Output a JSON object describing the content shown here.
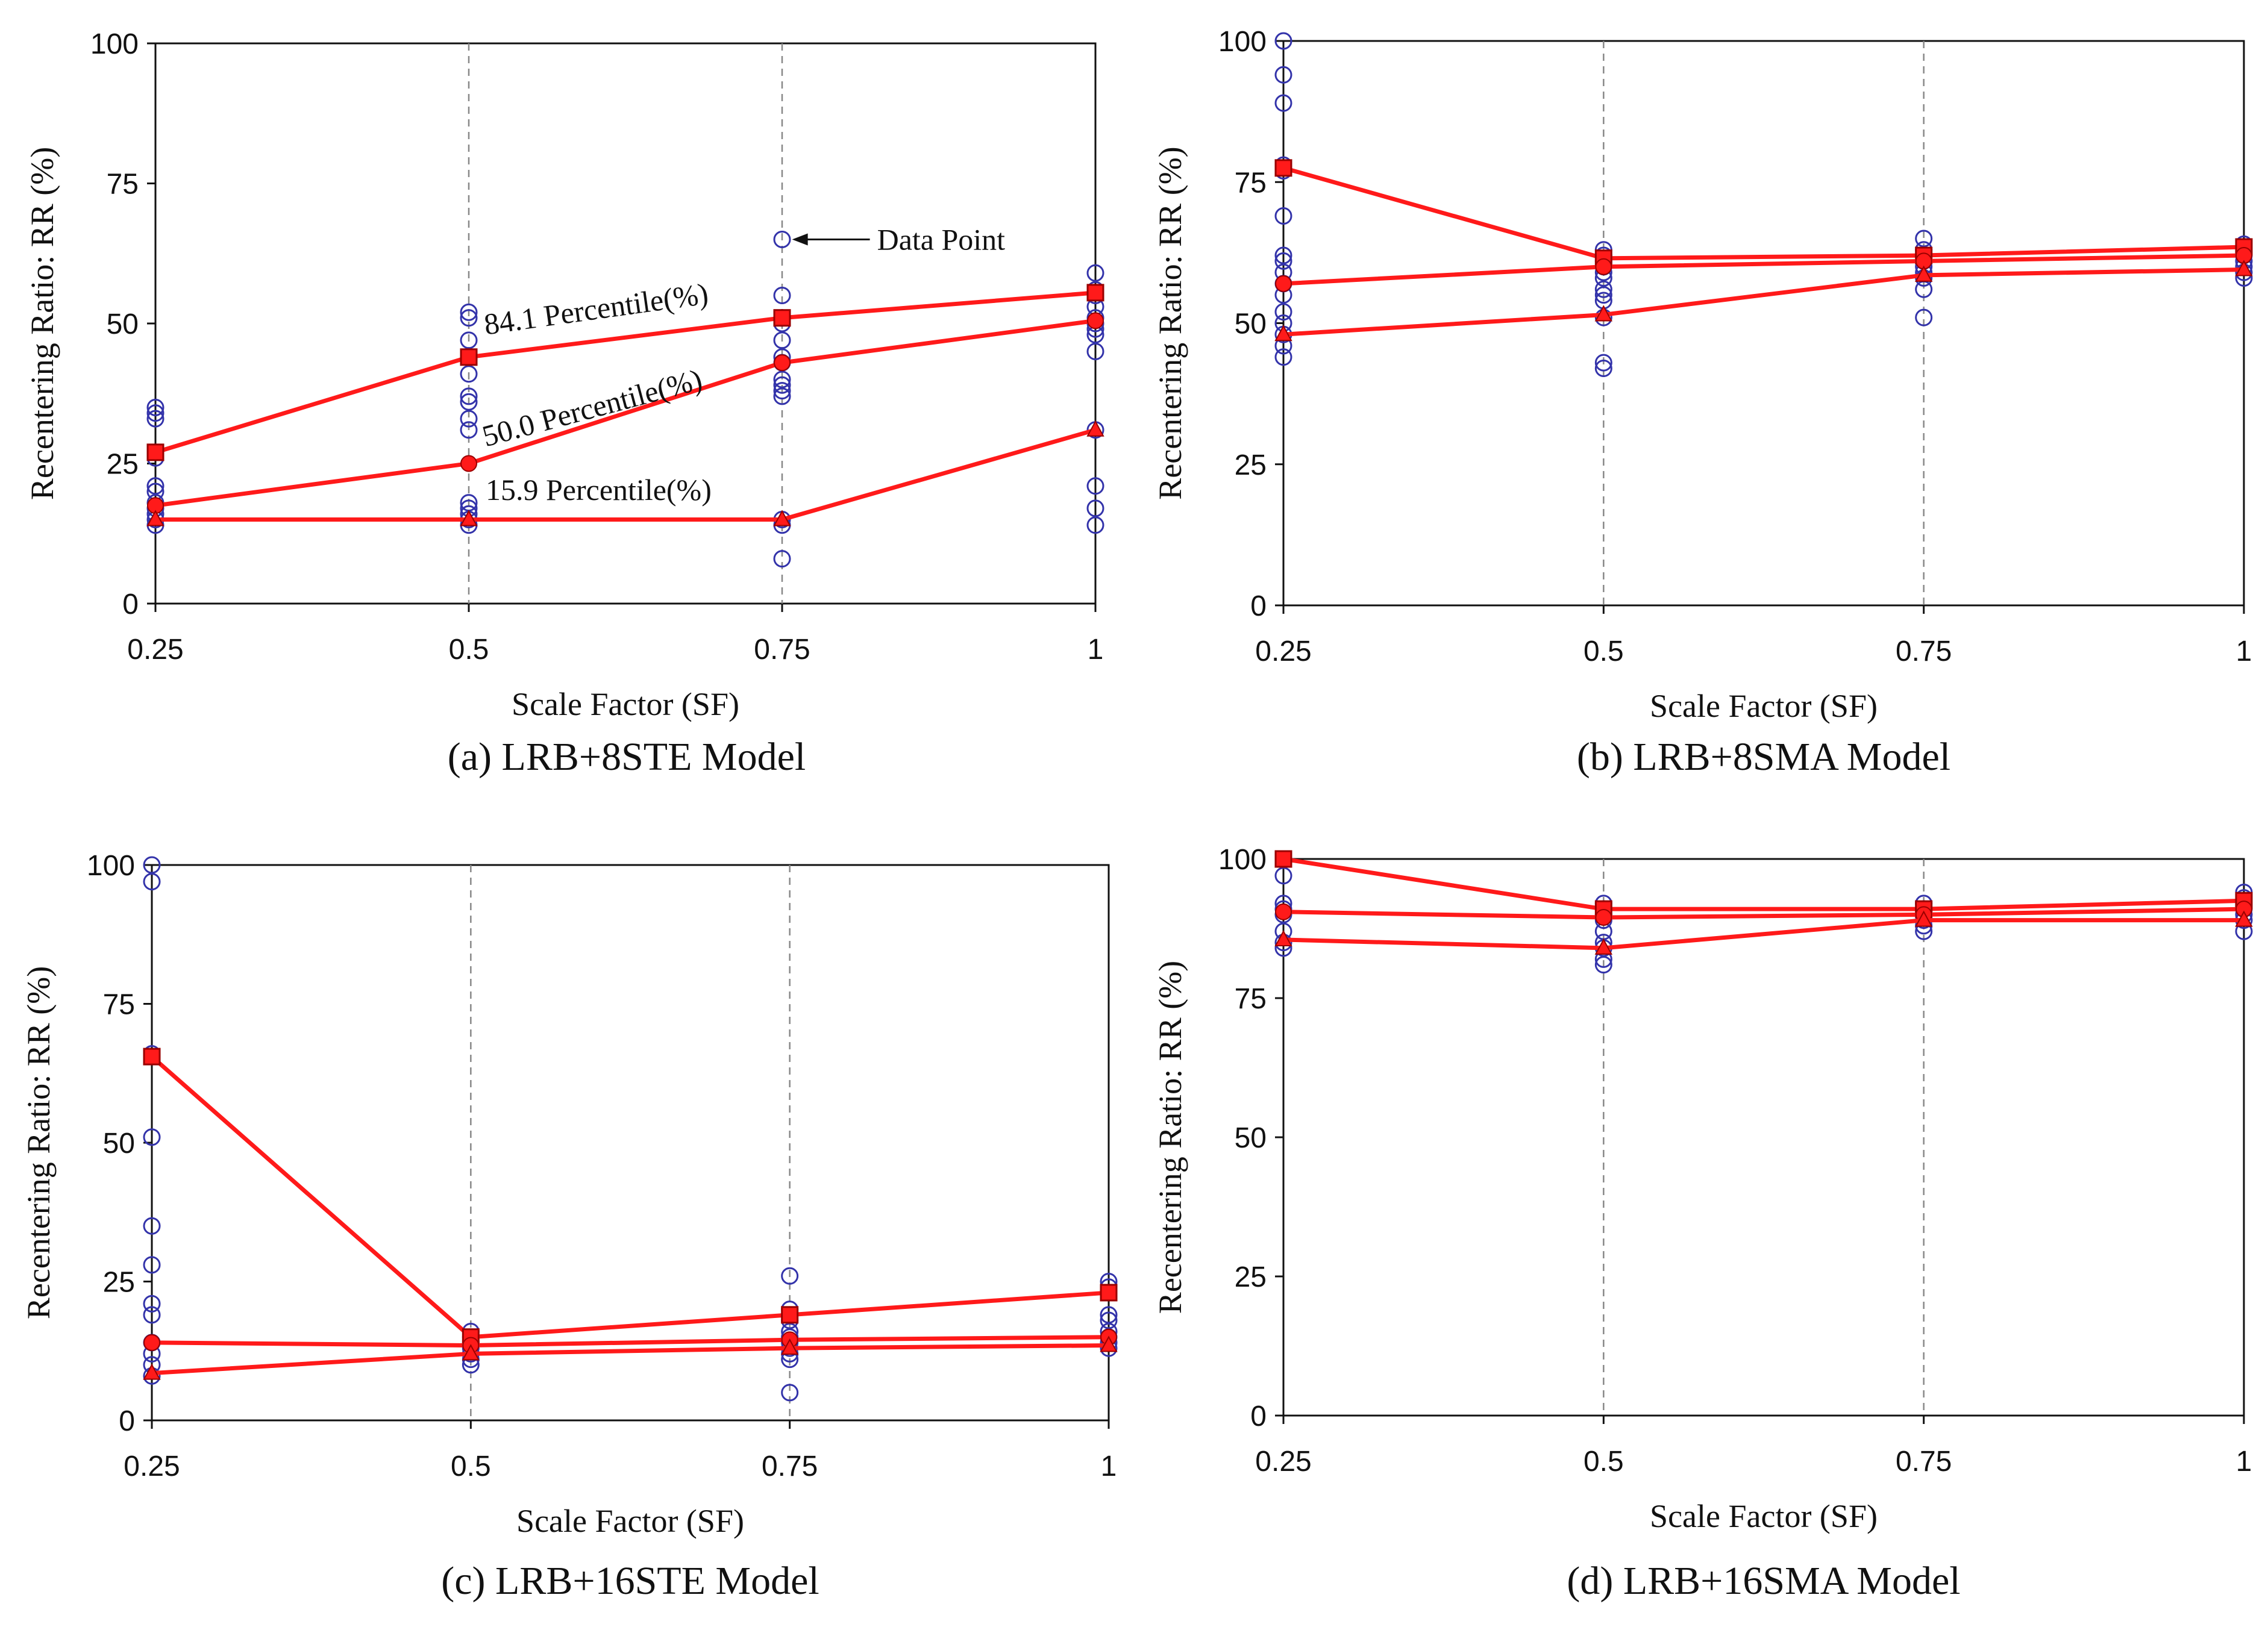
{
  "figure_colors": {
    "line": "#ff1a1a",
    "marker_edge": "#990000",
    "data_point": "#3333aa",
    "axis": "#111111",
    "grid": "#888888"
  },
  "chart_data": [
    {
      "type": "scatter",
      "caption": "(a) LRB+8STE Model",
      "xlabel": "Scale Factor (SF)",
      "ylabel": "Recentering Ratio: RR (%)",
      "x": [
        0.25,
        0.5,
        0.75,
        1
      ],
      "x_tick_labels": [
        "0.25",
        "0.5",
        "0.75",
        "1"
      ],
      "ylim": [
        0,
        100
      ],
      "y_ticks": [
        0,
        25,
        50,
        75,
        100
      ],
      "vertical_gridlines_at": [
        0.5,
        0.75
      ],
      "data_points": [
        {
          "x": 0.25,
          "y": [
            35,
            34,
            33,
            27,
            26,
            21,
            20,
            18,
            17,
            16,
            15,
            14
          ]
        },
        {
          "x": 0.5,
          "y": [
            52,
            51,
            47,
            44,
            41,
            37,
            36,
            33,
            31,
            18,
            17,
            16,
            15,
            14
          ]
        },
        {
          "x": 0.75,
          "y": [
            65,
            55,
            51,
            50,
            47,
            44,
            43,
            40,
            39,
            38,
            37,
            15,
            14,
            8
          ]
        },
        {
          "x": 1,
          "y": [
            59,
            56,
            55,
            53,
            51,
            50,
            49,
            48,
            45,
            31,
            21,
            17,
            14
          ]
        }
      ],
      "series": [
        {
          "name": "84.1 Percentile(%)",
          "marker": "square",
          "values": [
            27,
            44,
            51,
            55.5
          ]
        },
        {
          "name": "50.0 Percentile(%)",
          "marker": "circle",
          "values": [
            17.5,
            25,
            43,
            50.5
          ]
        },
        {
          "name": "15.9 Percentile(%)",
          "marker": "triangle",
          "values": [
            15,
            15,
            15,
            31
          ]
        }
      ],
      "annotations": [
        {
          "text": "84.1 Percentile(%)",
          "x": 0.5,
          "y": 48,
          "rotate": -8
        },
        {
          "text": "50.0 Percentile(%)",
          "x": 0.5,
          "y": 28,
          "rotate": -15
        },
        {
          "text": "15.9 Percentile(%)",
          "x": 0.5,
          "y": 18.5,
          "rotate": 0
        },
        {
          "text": "Data Point",
          "x": 0.82,
          "y": 65,
          "arrow_to": [
            0.758,
            65
          ]
        }
      ]
    },
    {
      "type": "scatter",
      "caption": "(b) LRB+8SMA Model",
      "xlabel": "Scale Factor (SF)",
      "ylabel": "Recentering Ratio: RR (%)",
      "x": [
        0.25,
        0.5,
        0.75,
        1
      ],
      "x_tick_labels": [
        "0.25",
        "0.5",
        "0.75",
        "1"
      ],
      "ylim": [
        0,
        100
      ],
      "y_ticks": [
        0,
        25,
        50,
        75,
        100
      ],
      "vertical_gridlines_at": [
        0.5,
        0.75
      ],
      "data_points": [
        {
          "x": 0.25,
          "y": [
            100,
            94,
            89,
            78,
            77,
            69,
            62,
            61,
            59,
            57,
            55,
            52,
            50,
            48,
            46,
            44
          ]
        },
        {
          "x": 0.5,
          "y": [
            63,
            62,
            61,
            60,
            59,
            58,
            56,
            55,
            54,
            51,
            43,
            42
          ]
        },
        {
          "x": 0.75,
          "y": [
            65,
            63,
            62,
            61,
            60,
            59,
            58,
            56,
            51
          ]
        },
        {
          "x": 1,
          "y": [
            64,
            63,
            62,
            61,
            60,
            59,
            58
          ]
        }
      ],
      "series": [
        {
          "name": "84.1 Percentile(%)",
          "marker": "square",
          "values": [
            77.5,
            61.5,
            62,
            63.5
          ]
        },
        {
          "name": "50.0 Percentile(%)",
          "marker": "circle",
          "values": [
            57,
            60,
            61,
            62
          ]
        },
        {
          "name": "15.9 Percentile(%)",
          "marker": "triangle",
          "values": [
            48,
            51.5,
            58.5,
            59.5
          ]
        }
      ]
    },
    {
      "type": "scatter",
      "caption": "(c) LRB+16STE Model",
      "xlabel": "Scale Factor (SF)",
      "ylabel": "Recentering Ratio: RR (%)",
      "x": [
        0.25,
        0.5,
        0.75,
        1
      ],
      "x_tick_labels": [
        "0.25",
        "0.5",
        "0.75",
        "1"
      ],
      "ylim": [
        0,
        100
      ],
      "y_ticks": [
        0,
        25,
        50,
        75,
        100
      ],
      "vertical_gridlines_at": [
        0.5,
        0.75
      ],
      "data_points": [
        {
          "x": 0.25,
          "y": [
            100,
            97,
            66,
            51,
            35,
            28,
            21,
            19,
            14,
            12,
            10,
            8
          ]
        },
        {
          "x": 0.5,
          "y": [
            16,
            15,
            14,
            13,
            12,
            11,
            10
          ]
        },
        {
          "x": 0.75,
          "y": [
            26,
            20,
            19,
            18,
            16,
            15,
            14,
            13,
            12,
            11,
            5
          ]
        },
        {
          "x": 1,
          "y": [
            25,
            24,
            19,
            18,
            16,
            15,
            14,
            13
          ]
        }
      ],
      "series": [
        {
          "name": "84.1 Percentile(%)",
          "marker": "square",
          "values": [
            65.5,
            15,
            19,
            23
          ]
        },
        {
          "name": "50.0 Percentile(%)",
          "marker": "circle",
          "values": [
            14,
            13.5,
            14.5,
            15
          ]
        },
        {
          "name": "15.9 Percentile(%)",
          "marker": "triangle",
          "values": [
            8.5,
            12,
            13,
            13.5
          ]
        }
      ]
    },
    {
      "type": "scatter",
      "caption": "(d) LRB+16SMA Model",
      "xlabel": "Scale Factor (SF)",
      "ylabel": "Recentering Ratio: RR (%)",
      "x": [
        0.25,
        0.5,
        0.75,
        1
      ],
      "x_tick_labels": [
        "0.25",
        "0.5",
        "0.75",
        "1"
      ],
      "ylim": [
        0,
        100
      ],
      "y_ticks": [
        0,
        25,
        50,
        75,
        100
      ],
      "vertical_gridlines_at": [
        0.5,
        0.75
      ],
      "data_points": [
        {
          "x": 0.25,
          "y": [
            100,
            97,
            92,
            91,
            90,
            87,
            85,
            84
          ]
        },
        {
          "x": 0.5,
          "y": [
            92,
            91,
            90,
            89,
            87,
            85,
            84,
            82,
            81
          ]
        },
        {
          "x": 0.75,
          "y": [
            92,
            91,
            90,
            89,
            88,
            87
          ]
        },
        {
          "x": 1,
          "y": [
            94,
            93,
            92,
            91,
            90,
            89,
            87
          ]
        }
      ],
      "series": [
        {
          "name": "84.1 Percentile(%)",
          "marker": "square",
          "values": [
            100,
            91,
            91,
            92.5
          ]
        },
        {
          "name": "50.0 Percentile(%)",
          "marker": "circle",
          "values": [
            90.5,
            89.5,
            90,
            91
          ]
        },
        {
          "name": "15.9 Percentile(%)",
          "marker": "triangle",
          "values": [
            85.5,
            84,
            89,
            89
          ]
        }
      ]
    }
  ]
}
